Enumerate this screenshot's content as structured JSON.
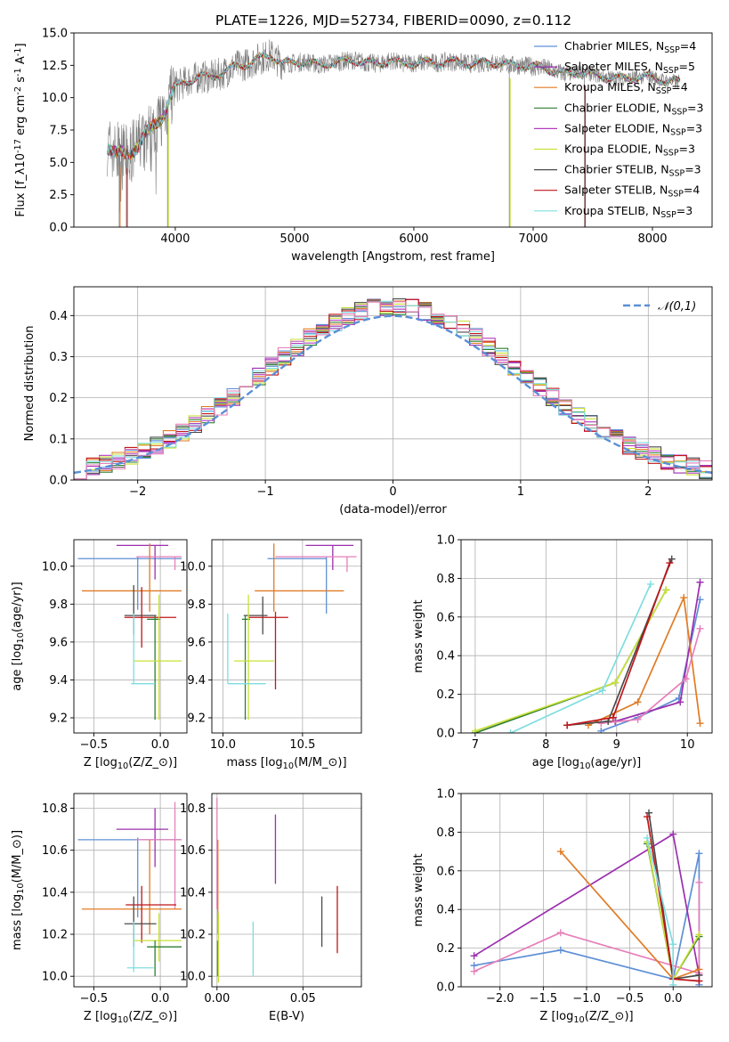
{
  "figure": {
    "title": "PLATE=1226, MJD=52734, FIBERID=0090, z=0.112"
  },
  "colors": {
    "grid": "#b0b0b0",
    "data_gray": "#808080",
    "gaussian": "#5b8fd6"
  },
  "model_series": [
    {
      "label": "Chabrier MILES, N$_{SSP}$=4",
      "color": "#5f8fd6"
    },
    {
      "label": "Salpeter MILES, N$_{SSP}$=5",
      "color": "#9b2fae"
    },
    {
      "label": "Kroupa MILES, N$_{SSP}$=4",
      "color": "#e07b24"
    },
    {
      "label": "Chabrier ELODIE, N$_{SSP}$=3",
      "color": "#2e7d32"
    },
    {
      "label": "Salpeter ELODIE, N$_{SSP}$=3",
      "color": "#b23bbf"
    },
    {
      "label": "Kroupa ELODIE, N$_{SSP}$=3",
      "color": "#c9e037"
    },
    {
      "label": "Chabrier STELIB, N$_{SSP}$=3",
      "color": "#4a4a4a"
    },
    {
      "label": "Salpeter STELIB, N$_{SSP}$=4",
      "color": "#c0161a"
    },
    {
      "label": "Kroupa STELIB, N$_{SSP}$=3",
      "color": "#7fdde0"
    }
  ],
  "short_colors": {
    "b": "#5f8fd6",
    "p": "#9b2fae",
    "o": "#e07b24",
    "g": "#2e7d32",
    "m": "#b23bbf",
    "y": "#c9e037",
    "k": "#4a4a4a",
    "r": "#c0161a",
    "c": "#7fdde0",
    "pk": "#e67fb9"
  },
  "chart_data": [
    {
      "type": "line",
      "name": "spectrum",
      "xlabel": "wavelength [Angstrom, rest frame]",
      "ylabel": "Flux [f$_\\lambda$10$^{-17}$ erg cm$^{-2}$ s$^{-1}$ A$^{-1}$]",
      "xlim": [
        3150,
        8500
      ],
      "ylim": [
        0,
        15
      ],
      "xticks": [
        4000,
        5000,
        6000,
        7000,
        8000
      ],
      "yticks": [
        0.0,
        2.5,
        5.0,
        7.5,
        10.0,
        12.5,
        15.0
      ],
      "legend": "upper right",
      "continuum": [
        [
          3430,
          6.3
        ],
        [
          3500,
          5.8
        ],
        [
          3600,
          5.5
        ],
        [
          3700,
          6.5
        ],
        [
          3800,
          7.6
        ],
        [
          3900,
          8.7
        ],
        [
          4000,
          10.8
        ],
        [
          4100,
          11.3
        ],
        [
          4200,
          11.6
        ],
        [
          4300,
          11.6
        ],
        [
          4400,
          11.9
        ],
        [
          4500,
          12.4
        ],
        [
          4600,
          12.6
        ],
        [
          4700,
          13.0
        ],
        [
          4800,
          13.3
        ],
        [
          4900,
          12.6
        ],
        [
          5000,
          12.7
        ],
        [
          5100,
          12.8
        ],
        [
          5200,
          12.5
        ],
        [
          5300,
          12.7
        ],
        [
          5400,
          12.8
        ],
        [
          5500,
          12.9
        ],
        [
          5600,
          12.7
        ],
        [
          5700,
          12.6
        ],
        [
          5800,
          12.9
        ],
        [
          5900,
          12.6
        ],
        [
          6000,
          12.7
        ],
        [
          6100,
          12.7
        ],
        [
          6200,
          12.7
        ],
        [
          6300,
          12.8
        ],
        [
          6400,
          12.7
        ],
        [
          6500,
          12.6
        ],
        [
          6600,
          12.7
        ],
        [
          6700,
          12.7
        ],
        [
          6800,
          12.5
        ],
        [
          6900,
          12.5
        ],
        [
          7000,
          12.4
        ],
        [
          7100,
          12.3
        ],
        [
          7200,
          12.0
        ],
        [
          7300,
          11.8
        ],
        [
          7400,
          12.0
        ],
        [
          7500,
          11.8
        ],
        [
          7600,
          11.6
        ],
        [
          7700,
          11.5
        ],
        [
          7800,
          11.5
        ],
        [
          7900,
          11.6
        ],
        [
          8000,
          11.6
        ],
        [
          8100,
          11.3
        ],
        [
          8230,
          11.2
        ]
      ],
      "spikes_down": [
        [
          3530,
          0
        ],
        [
          3590,
          0
        ],
        [
          3935,
          0
        ],
        [
          6800,
          0
        ],
        [
          7430,
          0
        ]
      ]
    },
    {
      "type": "step",
      "name": "residual-distribution",
      "xlabel": "(data-model)/error",
      "ylabel": "Normed distribution",
      "xlim": [
        -2.5,
        2.5
      ],
      "ylim": [
        0,
        0.47
      ],
      "xticks": [
        -2,
        -1,
        0,
        1,
        2
      ],
      "yticks": [
        0.0,
        0.1,
        0.2,
        0.3,
        0.4
      ],
      "legend": "upper right",
      "gaussian_label": "$\\mathcal{N}(0,1)$",
      "bin_width": 0.1
    },
    {
      "type": "errorbar",
      "name": "age-vs-Z",
      "xlabel": "Z [log$_{10}$(Z/Z$_\\odot$)]",
      "ylabel": "age  [log$_{10}$(age/yr)]",
      "xlim": [
        -0.65,
        0.2
      ],
      "ylim": [
        9.12,
        10.14
      ],
      "xticks": [
        -0.5,
        0.0
      ],
      "yticks": [
        9.2,
        9.4,
        9.6,
        9.8,
        10.0
      ],
      "points": [
        {
          "c": "b",
          "x": -0.17,
          "xe": [
            -0.62,
            0.16
          ],
          "y": 10.04,
          "ye": [
            9.77,
            10.05
          ]
        },
        {
          "c": "p",
          "x": -0.04,
          "xe": [
            -0.33,
            0.06
          ],
          "y": 10.11,
          "ye": [
            9.93,
            10.11
          ]
        },
        {
          "c": "pk",
          "x": 0.11,
          "xe": [
            -0.18,
            0.16
          ],
          "y": 10.05,
          "ye": [
            9.98,
            10.05
          ]
        },
        {
          "c": "o",
          "x": -0.08,
          "xe": [
            -0.59,
            0.16
          ],
          "y": 9.87,
          "ye": [
            9.76,
            10.12
          ]
        },
        {
          "c": "k",
          "x": -0.2,
          "xe": [
            -0.27,
            -0.03
          ],
          "y": 9.74,
          "ye": [
            9.64,
            9.9
          ]
        },
        {
          "c": "r",
          "x": -0.14,
          "xe": [
            -0.27,
            0.12
          ],
          "y": 9.73,
          "ye": [
            9.57,
            9.89
          ]
        },
        {
          "c": "g",
          "x": -0.04,
          "xe": [
            -0.1,
            0.0
          ],
          "y": 9.72,
          "ye": [
            9.19,
            9.74
          ]
        },
        {
          "c": "y",
          "x": -0.01,
          "xe": [
            -0.2,
            0.16
          ],
          "y": 9.5,
          "ye": [
            9.19,
            9.85
          ]
        },
        {
          "c": "c",
          "x": -0.2,
          "xe": [
            -0.22,
            -0.04
          ],
          "y": 9.38,
          "ye": [
            9.38,
            9.75
          ]
        }
      ]
    },
    {
      "type": "errorbar",
      "name": "age-vs-mass",
      "xlabel": "mass [log$_{10}$(M/M$_\\odot$)]",
      "ylabel": "",
      "xlim": [
        9.93,
        10.87
      ],
      "ylim": [
        9.12,
        10.14
      ],
      "xticks": [
        10.0,
        10.5
      ],
      "yticks": [
        9.2,
        9.4,
        9.6,
        9.8,
        10.0
      ],
      "points": [
        {
          "c": "b",
          "x": 10.65,
          "xe": [
            10.28,
            10.65
          ],
          "y": 10.04,
          "ye": [
            9.75,
            10.05
          ]
        },
        {
          "c": "p",
          "x": 10.69,
          "xe": [
            10.52,
            10.82
          ],
          "y": 10.11,
          "ye": [
            9.98,
            10.11
          ]
        },
        {
          "c": "pk",
          "x": 10.78,
          "xe": [
            10.33,
            10.84
          ],
          "y": 10.05,
          "ye": [
            9.97,
            10.05
          ]
        },
        {
          "c": "o",
          "x": 10.32,
          "xe": [
            10.2,
            10.76
          ],
          "y": 9.87,
          "ye": [
            9.76,
            10.12
          ]
        },
        {
          "c": "k",
          "x": 10.25,
          "xe": [
            10.13,
            10.28
          ],
          "y": 9.74,
          "ye": [
            9.64,
            9.84
          ]
        },
        {
          "c": "r",
          "x": 10.33,
          "xe": [
            10.16,
            10.41
          ],
          "y": 9.73,
          "ye": [
            9.35,
            9.76
          ]
        },
        {
          "c": "g",
          "x": 10.14,
          "xe": [
            10.12,
            10.17
          ],
          "y": 9.72,
          "ye": [
            9.19,
            9.74
          ]
        },
        {
          "c": "y",
          "x": 10.16,
          "xe": [
            10.07,
            10.32
          ],
          "y": 9.5,
          "ye": [
            9.19,
            9.85
          ]
        },
        {
          "c": "c",
          "x": 10.03,
          "xe": [
            10.03,
            10.27
          ],
          "y": 9.38,
          "ye": [
            9.38,
            9.75
          ]
        }
      ]
    },
    {
      "type": "line",
      "name": "mass-weight-vs-age",
      "xlabel": "age  [log$_{10}$(age/yr)]",
      "ylabel": "mass weight",
      "xlim": [
        6.8,
        10.35
      ],
      "ylim": [
        0,
        1
      ],
      "xticks": [
        7,
        8,
        9,
        10
      ],
      "yticks": [
        0.0,
        0.2,
        0.4,
        0.6,
        0.8,
        1.0
      ],
      "series": [
        {
          "c": "b",
          "x": [
            8.78,
            9.3,
            9.88,
            10.18
          ],
          "y": [
            0.01,
            0.08,
            0.18,
            0.69
          ]
        },
        {
          "c": "p",
          "x": [
            8.98,
            9.9,
            10.18
          ],
          "y": [
            0.06,
            0.16,
            0.78
          ]
        },
        {
          "c": "o",
          "x": [
            8.6,
            9.3,
            9.95,
            10.18
          ],
          "y": [
            0.04,
            0.16,
            0.7,
            0.05
          ]
        },
        {
          "c": "pk",
          "x": [
            8.78,
            9.3,
            9.98,
            10.18
          ],
          "y": [
            0.05,
            0.07,
            0.28,
            0.54
          ]
        },
        {
          "c": "g",
          "x": [
            7.0,
            8.98,
            9.7
          ],
          "y": [
            0.0,
            0.26,
            0.74
          ]
        },
        {
          "c": "y",
          "x": [
            7.0,
            8.98,
            9.7
          ],
          "y": [
            0.01,
            0.26,
            0.74
          ]
        },
        {
          "c": "k",
          "x": [
            8.3,
            8.88,
            9.78
          ],
          "y": [
            0.04,
            0.06,
            0.9
          ]
        },
        {
          "c": "r",
          "x": [
            8.3,
            8.95,
            9.75
          ],
          "y": [
            0.04,
            0.08,
            0.88
          ]
        },
        {
          "c": "c",
          "x": [
            7.5,
            8.8,
            9.48
          ],
          "y": [
            0.0,
            0.22,
            0.77
          ]
        }
      ]
    },
    {
      "type": "errorbar",
      "name": "mass-vs-Z",
      "xlabel": "Z [log$_{10}$(Z/Z$_\\odot$)]",
      "ylabel": "mass [log$_{10}$(M/M$_\\odot$)]",
      "xlim": [
        -0.65,
        0.2
      ],
      "ylim": [
        9.95,
        10.87
      ],
      "xticks": [
        -0.5,
        0.0
      ],
      "yticks": [
        10.0,
        10.2,
        10.4,
        10.6,
        10.8
      ],
      "points": [
        {
          "c": "b",
          "x": -0.17,
          "xe": [
            -0.62,
            0.16
          ],
          "y": 10.65,
          "ye": [
            10.28,
            10.66
          ]
        },
        {
          "c": "p",
          "x": -0.04,
          "xe": [
            -0.33,
            0.06
          ],
          "y": 10.7,
          "ye": [
            10.52,
            10.8
          ]
        },
        {
          "c": "pk",
          "x": 0.11,
          "xe": [
            -0.18,
            0.16
          ],
          "y": 10.65,
          "ye": [
            10.32,
            10.83
          ]
        },
        {
          "c": "o",
          "x": -0.08,
          "xe": [
            -0.59,
            0.16
          ],
          "y": 10.32,
          "ye": [
            10.2,
            10.65
          ]
        },
        {
          "c": "r",
          "x": -0.14,
          "xe": [
            -0.26,
            0.12
          ],
          "y": 10.34,
          "ye": [
            10.16,
            10.43
          ]
        },
        {
          "c": "k",
          "x": -0.2,
          "xe": [
            -0.27,
            -0.03
          ],
          "y": 10.25,
          "ye": [
            10.14,
            10.38
          ]
        },
        {
          "c": "y",
          "x": -0.01,
          "xe": [
            -0.2,
            0.16
          ],
          "y": 10.17,
          "ye": [
            10.07,
            10.3
          ]
        },
        {
          "c": "g",
          "x": -0.04,
          "xe": [
            -0.1,
            0.16
          ],
          "y": 10.14,
          "ye": [
            10.0,
            10.17
          ]
        },
        {
          "c": "c",
          "x": -0.2,
          "xe": [
            -0.25,
            -0.05
          ],
          "y": 10.04,
          "ye": [
            10.02,
            10.26
          ]
        }
      ]
    },
    {
      "type": "errorbar",
      "name": "mass-vs-EBV",
      "xlabel": "E(B-V)",
      "ylabel": "",
      "xlim": [
        -0.003,
        0.084
      ],
      "ylim": [
        9.95,
        10.87
      ],
      "xticks": [
        0.0,
        0.05
      ],
      "yticks": [
        10.0,
        10.2,
        10.4,
        10.6,
        10.8
      ],
      "vbars": [
        {
          "c": "pk",
          "x": 0.0,
          "ye": [
            10.32,
            10.85
          ]
        },
        {
          "c": "o",
          "x": 0.0005,
          "ye": [
            10.2,
            10.65
          ]
        },
        {
          "c": "g",
          "x": 0.0003,
          "ye": [
            10.0,
            10.17
          ]
        },
        {
          "c": "y",
          "x": 0.0008,
          "ye": [
            9.97,
            10.3
          ]
        },
        {
          "c": "c",
          "x": 0.021,
          "ye": [
            10.0,
            10.26
          ]
        },
        {
          "c": "p",
          "x": 0.034,
          "ye": [
            10.44,
            10.77
          ]
        },
        {
          "c": "k",
          "x": 0.061,
          "ye": [
            10.14,
            10.38
          ]
        },
        {
          "c": "r",
          "x": 0.07,
          "ye": [
            10.11,
            10.43
          ]
        }
      ]
    },
    {
      "type": "line",
      "name": "mass-weight-vs-Z",
      "xlabel": "Z [log$_{10}$(Z/Z$_\\odot$)]",
      "ylabel": "mass weight",
      "xlim": [
        -2.45,
        0.45
      ],
      "ylim": [
        0,
        1
      ],
      "xticks": [
        -2.0,
        -1.5,
        -1.0,
        -0.5,
        0.0
      ],
      "yticks": [
        0.0,
        0.2,
        0.4,
        0.6,
        0.8,
        1.0
      ],
      "series": [
        {
          "c": "b",
          "x": [
            -2.3,
            -1.3,
            0.0,
            0.3,
            0.3
          ],
          "y": [
            0.11,
            0.19,
            0.04,
            0.69,
            0.01
          ]
        },
        {
          "c": "p",
          "x": [
            -2.3,
            0.0,
            0.3
          ],
          "y": [
            0.16,
            0.79,
            0.06
          ]
        },
        {
          "c": "pk",
          "x": [
            -2.3,
            -1.3,
            0.3,
            0.3
          ],
          "y": [
            0.08,
            0.28,
            0.07,
            0.54
          ]
        },
        {
          "c": "o",
          "x": [
            -1.3,
            0.0,
            0.3
          ],
          "y": [
            0.7,
            0.04,
            0.09
          ]
        },
        {
          "c": "g",
          "x": [
            -0.3,
            0.0,
            0.3
          ],
          "y": [
            0.74,
            0.04,
            0.26
          ]
        },
        {
          "c": "y",
          "x": [
            -0.3,
            0.0,
            0.3
          ],
          "y": [
            0.75,
            0.04,
            0.27
          ]
        },
        {
          "c": "k",
          "x": [
            -0.28,
            0.0,
            0.3
          ],
          "y": [
            0.9,
            0.04,
            0.06
          ]
        },
        {
          "c": "r",
          "x": [
            -0.3,
            0.0,
            0.3
          ],
          "y": [
            0.88,
            0.04,
            0.03
          ]
        },
        {
          "c": "c",
          "x": [
            -0.3,
            0.0,
            0.0
          ],
          "y": [
            0.77,
            0.22,
            0.01
          ]
        }
      ]
    }
  ]
}
